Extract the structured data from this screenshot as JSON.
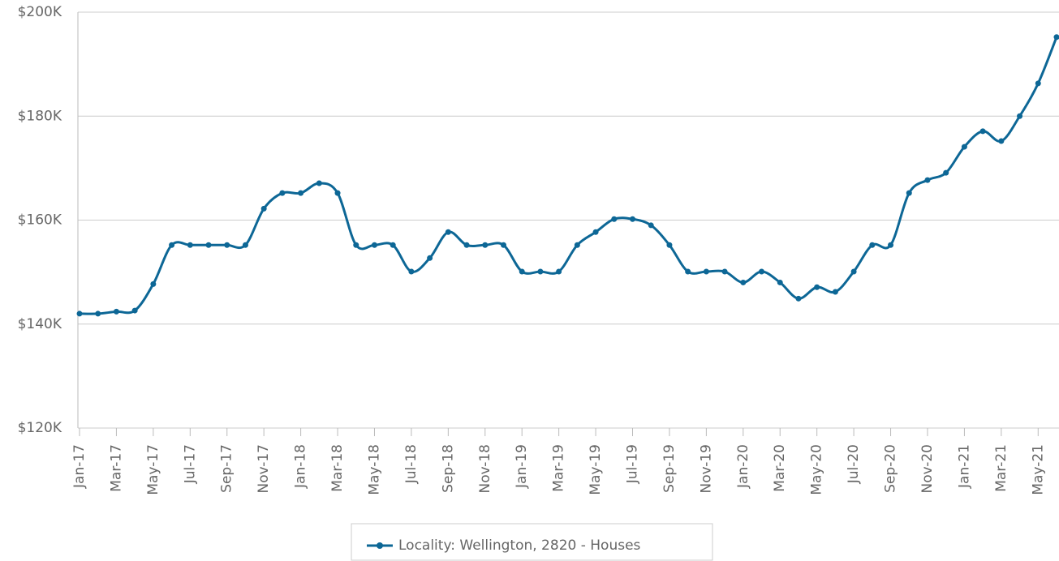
{
  "chart_data": {
    "type": "line",
    "categories": [
      "Jan-17",
      null,
      "Mar-17",
      null,
      "May-17",
      null,
      "Jul-17",
      null,
      "Sep-17",
      null,
      "Nov-17",
      null,
      "Jan-18",
      null,
      "Mar-18",
      null,
      "May-18",
      null,
      "Jul-18",
      null,
      "Sep-18",
      null,
      "Nov-18",
      null,
      "Jan-19",
      null,
      "Mar-19",
      null,
      "May-19",
      null,
      "Jul-19",
      null,
      "Sep-19",
      null,
      "Nov-19",
      null,
      "Jan-20",
      null,
      "Mar-20",
      null,
      "May-20",
      null,
      "Jul-20",
      null,
      "Sep-20",
      null,
      "Nov-20",
      null,
      "Jan-21",
      null,
      "Mar-21",
      null,
      "May-21",
      null
    ],
    "series": [
      {
        "name": "Locality: Wellington, 2820 - Houses",
        "color": "#0d6796",
        "values": [
          142000,
          142000,
          142400,
          142600,
          147700,
          155200,
          155200,
          155200,
          155200,
          155200,
          162200,
          165200,
          165200,
          167100,
          165200,
          155200,
          155200,
          155200,
          150100,
          152700,
          157700,
          155200,
          155200,
          155200,
          150100,
          150100,
          150100,
          155200,
          157700,
          160200,
          160200,
          159000,
          155200,
          150100,
          150100,
          150100,
          148000,
          150100,
          148000,
          144900,
          147100,
          146200,
          150100,
          155200,
          155200,
          165200,
          167700,
          169100,
          174100,
          177100,
          175200,
          180000,
          186300,
          195200
        ]
      }
    ],
    "ylim": [
      120000,
      200000
    ],
    "yticks": [
      {
        "value": 120000,
        "label": "$120K"
      },
      {
        "value": 140000,
        "label": "$140K"
      },
      {
        "value": 160000,
        "label": "$160K"
      },
      {
        "value": 180000,
        "label": "$180K"
      },
      {
        "value": 200000,
        "label": "$200K"
      }
    ],
    "grid": true,
    "legend": "bottom"
  }
}
